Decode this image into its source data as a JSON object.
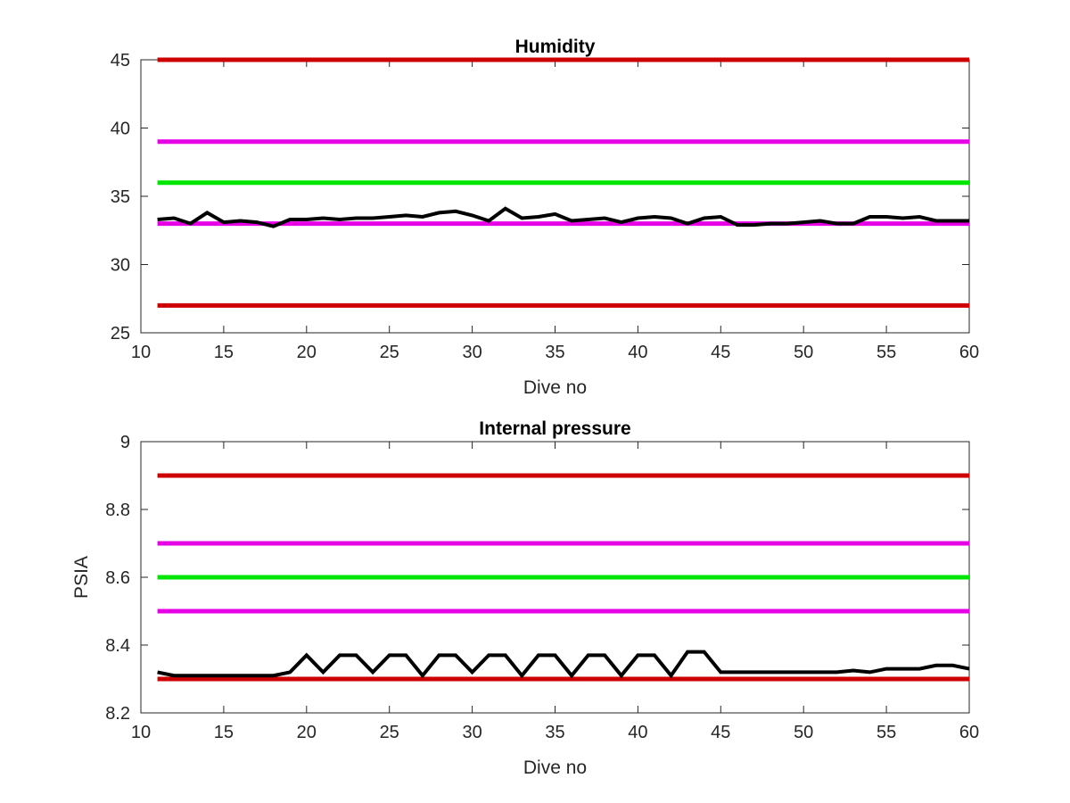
{
  "chart_data": [
    {
      "type": "line",
      "title": "Humidity",
      "xlabel": "Dive no",
      "ylabel": "",
      "xlim": [
        10,
        60
      ],
      "ylim": [
        25,
        45
      ],
      "xticks": [
        "10",
        "15",
        "20",
        "25",
        "30",
        "35",
        "40",
        "45",
        "50",
        "55",
        "60"
      ],
      "yticks": [
        "25",
        "30",
        "35",
        "40",
        "45"
      ],
      "grid": false,
      "limit_lines": [
        {
          "value": 45,
          "color": "#cc0000"
        },
        {
          "value": 39,
          "color": "#e600e6"
        },
        {
          "value": 36,
          "color": "#00e600"
        },
        {
          "value": 33,
          "color": "#e600e6"
        },
        {
          "value": 27,
          "color": "#cc0000"
        }
      ],
      "series": [
        {
          "color": "#000000",
          "x": [
            11,
            12,
            13,
            14,
            15,
            16,
            17,
            18,
            19,
            20,
            21,
            22,
            23,
            24,
            25,
            26,
            27,
            28,
            29,
            30,
            31,
            32,
            33,
            34,
            35,
            36,
            37,
            38,
            39,
            40,
            41,
            42,
            43,
            44,
            45,
            46,
            47,
            48,
            49,
            50,
            51,
            52,
            53,
            54,
            55,
            56,
            57,
            58,
            59,
            60
          ],
          "y": [
            33.3,
            33.4,
            33.0,
            33.8,
            33.1,
            33.2,
            33.1,
            32.8,
            33.3,
            33.3,
            33.4,
            33.3,
            33.4,
            33.4,
            33.5,
            33.6,
            33.5,
            33.8,
            33.9,
            33.6,
            33.2,
            34.1,
            33.4,
            33.5,
            33.7,
            33.2,
            33.3,
            33.4,
            33.1,
            33.4,
            33.5,
            33.4,
            33.0,
            33.4,
            33.5,
            32.9,
            32.9,
            33.0,
            33.0,
            33.1,
            33.2,
            33.0,
            33.0,
            33.5,
            33.5,
            33.4,
            33.5,
            33.2,
            33.2,
            33.2
          ]
        }
      ]
    },
    {
      "type": "line",
      "title": "Internal pressure",
      "xlabel": "Dive no",
      "ylabel": "PSIA",
      "xlim": [
        10,
        60
      ],
      "ylim": [
        8.2,
        9
      ],
      "xticks": [
        "10",
        "15",
        "20",
        "25",
        "30",
        "35",
        "40",
        "45",
        "50",
        "55",
        "60"
      ],
      "yticks": [
        "8.2",
        "8.4",
        "8.6",
        "8.8",
        "9"
      ],
      "grid": false,
      "limit_lines": [
        {
          "value": 8.9,
          "color": "#cc0000"
        },
        {
          "value": 8.7,
          "color": "#e600e6"
        },
        {
          "value": 8.6,
          "color": "#00e600"
        },
        {
          "value": 8.5,
          "color": "#e600e6"
        },
        {
          "value": 8.3,
          "color": "#cc0000"
        }
      ],
      "series": [
        {
          "color": "#000000",
          "x": [
            11,
            12,
            13,
            14,
            15,
            16,
            17,
            18,
            19,
            20,
            21,
            22,
            23,
            24,
            25,
            26,
            27,
            28,
            29,
            30,
            31,
            32,
            33,
            34,
            35,
            36,
            37,
            38,
            39,
            40,
            41,
            42,
            43,
            44,
            45,
            46,
            47,
            48,
            49,
            50,
            51,
            52,
            53,
            54,
            55,
            56,
            57,
            58,
            59,
            60
          ],
          "y": [
            8.32,
            8.31,
            8.31,
            8.31,
            8.31,
            8.31,
            8.31,
            8.31,
            8.32,
            8.37,
            8.32,
            8.37,
            8.37,
            8.32,
            8.37,
            8.37,
            8.31,
            8.37,
            8.37,
            8.32,
            8.37,
            8.37,
            8.31,
            8.37,
            8.37,
            8.31,
            8.37,
            8.37,
            8.31,
            8.37,
            8.37,
            8.31,
            8.38,
            8.38,
            8.32,
            8.32,
            8.32,
            8.32,
            8.32,
            8.32,
            8.32,
            8.32,
            8.325,
            8.32,
            8.33,
            8.33,
            8.33,
            8.34,
            8.34,
            8.33
          ]
        }
      ]
    }
  ]
}
